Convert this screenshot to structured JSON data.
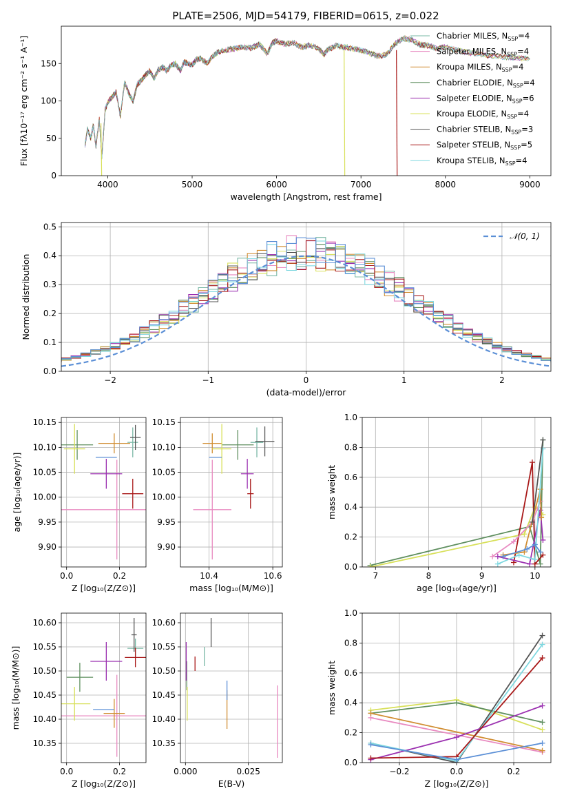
{
  "figure": {
    "title": "PLATE=2506, MJD=54179, FIBERID=0615, z=0.022"
  },
  "palette": {
    "Chabrier MILES": "#7ab8a6",
    "Salpeter MILES": "#e889c0",
    "Kroupa MILES": "#d18e33",
    "Chabrier ELODIE": "#5f8f5f",
    "Salpeter ELODIE": "#9b30b0",
    "Kroupa ELODIE": "#d8e05a",
    "Chabrier STELIB": "#555555",
    "Salpeter STELIB": "#a81818",
    "Kroupa STELIB": "#7fd8e0",
    "Normal": "#5b8fd6",
    "spectrum": "#888888"
  },
  "legend_spectra": [
    {
      "name": "Chabrier MILES",
      "label": "Chabrier MILES, N",
      "sub": "SSP",
      "suffix": "=4"
    },
    {
      "name": "Salpeter MILES",
      "label": "Salpeter MILES, N",
      "sub": "SSP",
      "suffix": "=4"
    },
    {
      "name": "Kroupa MILES",
      "label": "Kroupa MILES, N",
      "sub": "SSP",
      "suffix": "=4"
    },
    {
      "name": "Chabrier ELODIE",
      "label": "Chabrier ELODIE, N",
      "sub": "SSP",
      "suffix": "=4"
    },
    {
      "name": "Salpeter ELODIE",
      "label": "Salpeter ELODIE, N",
      "sub": "SSP",
      "suffix": "=6"
    },
    {
      "name": "Kroupa ELODIE",
      "label": "Kroupa ELODIE, N",
      "sub": "SSP",
      "suffix": "=4"
    },
    {
      "name": "Chabrier STELIB",
      "label": "Chabrier STELIB, N",
      "sub": "SSP",
      "suffix": "=3"
    },
    {
      "name": "Salpeter STELIB",
      "label": "Salpeter STELIB, N",
      "sub": "SSP",
      "suffix": "=5"
    },
    {
      "name": "Kroupa STELIB",
      "label": "Kroupa STELIB, N",
      "sub": "SSP",
      "suffix": "=4"
    }
  ],
  "chart_data": [
    {
      "id": "spectrum",
      "type": "line",
      "xlabel": "wavelength [Angstrom, rest frame]",
      "ylabel": "Flux [fλ10⁻¹⁷ erg cm⁻² s⁻¹ A⁻¹]",
      "xlim": [
        3450,
        9250
      ],
      "ylim": [
        0,
        200
      ],
      "xticks": [
        4000,
        5000,
        6000,
        7000,
        8000,
        9000
      ],
      "yticks": [
        0,
        50,
        100,
        150
      ],
      "x": [
        3730,
        3760,
        3800,
        3830,
        3860,
        3900,
        3930,
        3970,
        4000,
        4050,
        4100,
        4150,
        4200,
        4250,
        4300,
        4350,
        4400,
        4450,
        4500,
        4550,
        4600,
        4650,
        4700,
        4750,
        4800,
        4861,
        4900,
        4950,
        5000,
        5050,
        5100,
        5175,
        5250,
        5300,
        5400,
        5500,
        5600,
        5700,
        5800,
        5893,
        5950,
        6000,
        6100,
        6200,
        6300,
        6400,
        6500,
        6563,
        6600,
        6700,
        6800,
        6900,
        7000,
        7100,
        7200,
        7300,
        7400,
        7500,
        7600,
        7700,
        7800,
        7900,
        8000,
        8200,
        8400,
        8600,
        8800,
        9000
      ],
      "y": [
        40,
        62,
        50,
        68,
        40,
        75,
        25,
        88,
        98,
        105,
        112,
        80,
        125,
        110,
        100,
        122,
        128,
        135,
        140,
        130,
        142,
        145,
        140,
        148,
        150,
        140,
        152,
        150,
        148,
        155,
        157,
        150,
        160,
        165,
        168,
        170,
        172,
        171,
        176,
        163,
        178,
        180,
        176,
        178,
        172,
        175,
        170,
        162,
        168,
        174,
        172,
        170,
        168,
        164,
        160,
        162,
        176,
        184,
        182,
        175,
        174,
        170,
        172,
        166,
        162,
        160,
        158,
        156
      ],
      "drops": [
        {
          "series": "Kroupa ELODIE",
          "x": 6800
        },
        {
          "series": "Salpeter STELIB",
          "x": 7420
        },
        {
          "series": "Kroupa ELODIE",
          "x": 3920
        }
      ]
    },
    {
      "id": "residuals",
      "type": "histogram",
      "xlabel": "(data-model)/error",
      "ylabel": "Normed distribution",
      "xlim": [
        -2.5,
        2.5
      ],
      "ylim": [
        0,
        0.515
      ],
      "xticks": [
        -2,
        -1,
        0,
        1,
        2
      ],
      "yticks": [
        0.0,
        0.1,
        0.2,
        0.3,
        0.4,
        0.5
      ],
      "legend": "𝒩(0, 1)",
      "bin_width": 0.1
    },
    {
      "id": "age_vs_Z",
      "type": "scatter",
      "xlabel": "Z [log₁₀(Z/Z⊙)]",
      "ylabel": "age  [log₁₀(age/yr)]",
      "xlim": [
        -0.02,
        0.3
      ],
      "ylim": [
        9.86,
        10.16
      ],
      "xticks": [
        0.0,
        0.2
      ],
      "yticks": [
        9.9,
        9.95,
        10.0,
        10.05,
        10.1,
        10.15
      ],
      "points": [
        {
          "series": "Chabrier MILES",
          "x": 0.25,
          "y": 10.11,
          "xerr": 0.02,
          "yerr": 0.03
        },
        {
          "series": "Salpeter MILES",
          "x": 0.19,
          "y": 9.975,
          "xerr": 0.29,
          "yerr": 0.1
        },
        {
          "series": "Kroupa MILES",
          "x": 0.18,
          "y": 10.108,
          "xerr": 0.06,
          "yerr": 0.02
        },
        {
          "series": "Chabrier ELODIE",
          "x": 0.04,
          "y": 10.105,
          "xerr": 0.06,
          "yerr": 0.03
        },
        {
          "series": "Salpeter ELODIE",
          "x": 0.15,
          "y": 10.047,
          "xerr": 0.06,
          "yerr": 0.03
        },
        {
          "series": "Kroupa ELODIE",
          "x": 0.03,
          "y": 10.097,
          "xerr": 0.04,
          "yerr": 0.05
        },
        {
          "series": "Chabrier STELIB",
          "x": 0.26,
          "y": 10.12,
          "xerr": 0.02,
          "yerr": 0.025
        },
        {
          "series": "Salpeter STELIB",
          "x": 0.25,
          "y": 10.007,
          "xerr": 0.04,
          "yerr": 0.03
        },
        {
          "series": "Normal",
          "x": 0.15,
          "y": 10.08,
          "xerr": 0.04,
          "yerr": 0.0
        }
      ]
    },
    {
      "id": "age_vs_mass",
      "type": "scatter",
      "xlabel": "mass [log₁₀(M/M⊙)]",
      "ylabel": "",
      "xlim": [
        10.31,
        10.63
      ],
      "ylim": [
        9.86,
        10.16
      ],
      "xticks": [
        10.4,
        10.6
      ],
      "yticks": [
        9.9,
        9.95,
        10.0,
        10.05,
        10.1,
        10.15
      ],
      "points": [
        {
          "series": "Chabrier MILES",
          "x": 10.55,
          "y": 10.11,
          "xerr": 0.02,
          "yerr": 0.03
        },
        {
          "series": "Salpeter MILES",
          "x": 10.41,
          "y": 9.975,
          "xerr": 0.06,
          "yerr": 0.1
        },
        {
          "series": "Kroupa MILES",
          "x": 10.41,
          "y": 10.108,
          "xerr": 0.03,
          "yerr": 0.02
        },
        {
          "series": "Chabrier ELODIE",
          "x": 10.49,
          "y": 10.105,
          "xerr": 0.05,
          "yerr": 0.03
        },
        {
          "series": "Salpeter ELODIE",
          "x": 10.52,
          "y": 10.047,
          "xerr": 0.02,
          "yerr": 0.03
        },
        {
          "series": "Kroupa ELODIE",
          "x": 10.44,
          "y": 10.097,
          "xerr": 0.03,
          "yerr": 0.05
        },
        {
          "series": "Chabrier STELIB",
          "x": 10.575,
          "y": 10.112,
          "xerr": 0.03,
          "yerr": 0.03
        },
        {
          "series": "Salpeter STELIB",
          "x": 10.53,
          "y": 10.007,
          "xerr": 0.01,
          "yerr": 0.03
        },
        {
          "series": "Normal",
          "x": 10.42,
          "y": 10.08,
          "xerr": 0.02,
          "yerr": 0.0
        }
      ]
    },
    {
      "id": "weight_vs_age",
      "type": "line",
      "xlabel": "age  [log₁₀(age/yr)]",
      "ylabel": "mass weight",
      "xlim": [
        6.75,
        10.3
      ],
      "ylim": [
        0,
        1
      ],
      "xticks": [
        7,
        8,
        9,
        10
      ],
      "yticks": [
        0.0,
        0.2,
        0.4,
        0.6,
        0.8,
        1.0
      ],
      "series": [
        {
          "name": "Chabrier ELODIE",
          "x": [
            6.9,
            9.9,
            10.1,
            10.15
          ],
          "y": [
            0.01,
            0.27,
            0.02,
            0.85
          ]
        },
        {
          "name": "Kroupa ELODIE",
          "x": [
            6.9,
            9.8,
            10.0,
            10.15
          ],
          "y": [
            0.0,
            0.22,
            0.4,
            0.35
          ]
        },
        {
          "name": "Salpeter STELIB",
          "x": [
            9.6,
            9.95,
            10.0,
            10.15
          ],
          "y": [
            0.03,
            0.7,
            0.02,
            0.08
          ]
        },
        {
          "name": "Salpeter ELODIE",
          "x": [
            9.3,
            9.9,
            10.1,
            10.15
          ],
          "y": [
            0.07,
            0.02,
            0.38,
            0.18
          ]
        },
        {
          "name": "Salpeter MILES",
          "x": [
            9.2,
            9.6,
            9.95,
            10.1
          ],
          "y": [
            0.07,
            0.17,
            0.3,
            0.44
          ]
        },
        {
          "name": "Kroupa MILES",
          "x": [
            9.4,
            9.8,
            10.1,
            10.12
          ],
          "y": [
            0.08,
            0.1,
            0.52,
            0.33
          ]
        },
        {
          "name": "Kroupa STELIB",
          "x": [
            9.3,
            9.7,
            10.0,
            10.15
          ],
          "y": [
            0.02,
            0.08,
            0.05,
            0.79
          ]
        },
        {
          "name": "Normal",
          "x": [
            9.4,
            9.85,
            10.0,
            10.1
          ],
          "y": [
            0.07,
            0.12,
            0.15,
            0.1
          ]
        },
        {
          "name": "Chabrier STELIB",
          "x": [
            9.95,
            10.15
          ],
          "y": [
            0.3,
            0.85
          ]
        }
      ]
    },
    {
      "id": "mass_vs_Z",
      "type": "scatter",
      "xlabel": "Z [log₁₀(Z/Z⊙)]",
      "ylabel": "mass [log₁₀(M/M⊙)]",
      "xlim": [
        -0.02,
        0.3
      ],
      "ylim": [
        10.31,
        10.62
      ],
      "xticks": [
        0.0,
        0.2
      ],
      "yticks": [
        10.35,
        10.4,
        10.45,
        10.5,
        10.55,
        10.6
      ],
      "points": [
        {
          "series": "Chabrier MILES",
          "x": 0.26,
          "y": 10.547,
          "xerr": 0.03,
          "yerr": 0.02
        },
        {
          "series": "Salpeter MILES",
          "x": 0.19,
          "y": 10.407,
          "xerr": 0.29,
          "yerr": 0.085
        },
        {
          "series": "Kroupa MILES",
          "x": 0.18,
          "y": 10.412,
          "xerr": 0.04,
          "yerr": 0.03
        },
        {
          "series": "Chabrier ELODIE",
          "x": 0.05,
          "y": 10.487,
          "xerr": 0.05,
          "yerr": 0.03
        },
        {
          "series": "Salpeter ELODIE",
          "x": 0.15,
          "y": 10.52,
          "xerr": 0.06,
          "yerr": 0.04
        },
        {
          "series": "Kroupa ELODIE",
          "x": 0.03,
          "y": 10.432,
          "xerr": 0.06,
          "yerr": 0.035
        },
        {
          "series": "Chabrier STELIB",
          "x": 0.255,
          "y": 10.575,
          "xerr": 0.01,
          "yerr": 0.035
        },
        {
          "series": "Salpeter STELIB",
          "x": 0.26,
          "y": 10.528,
          "xerr": 0.04,
          "yerr": 0.02
        },
        {
          "series": "Normal",
          "x": 0.14,
          "y": 10.42,
          "xerr": 0.04,
          "yerr": 0.0
        }
      ]
    },
    {
      "id": "mass_vs_ebv",
      "type": "scatter",
      "xlabel": "E(B-V)",
      "ylabel": "",
      "xlim": [
        -0.002,
        0.0385
      ],
      "ylim": [
        10.31,
        10.62
      ],
      "xticks": [
        0.0,
        0.025
      ],
      "xtick_labels": [
        "0.000",
        "0.025"
      ],
      "yticks": [
        10.35,
        10.4,
        10.45,
        10.5,
        10.55,
        10.6
      ],
      "points": [
        {
          "series": "Chabrier MILES",
          "x": 0.0075,
          "y": 10.53,
          "xerr": 0.0,
          "yerr": 0.02
        },
        {
          "series": "Salpeter MILES",
          "x": 0.0365,
          "y": 10.395,
          "xerr": 0.0,
          "yerr": 0.075
        },
        {
          "series": "Kroupa MILES",
          "x": 0.0165,
          "y": 10.42,
          "xerr": 0.0,
          "yerr": 0.04
        },
        {
          "series": "Chabrier ELODIE",
          "x": 0.0005,
          "y": 10.49,
          "xerr": 0.0,
          "yerr": 0.03
        },
        {
          "series": "Salpeter ELODIE",
          "x": 0.0003,
          "y": 10.52,
          "xerr": 0.0,
          "yerr": 0.04
        },
        {
          "series": "Kroupa ELODIE",
          "x": 0.0007,
          "y": 10.432,
          "xerr": 0.0,
          "yerr": 0.035
        },
        {
          "series": "Chabrier STELIB",
          "x": 0.0102,
          "y": 10.58,
          "xerr": 0.0,
          "yerr": 0.03
        },
        {
          "series": "Salpeter STELIB",
          "x": 0.0038,
          "y": 10.515,
          "xerr": 0.0,
          "yerr": 0.015
        },
        {
          "series": "Normal",
          "x": 0.0165,
          "y": 10.46,
          "xerr": 0.0,
          "yerr": 0.02
        }
      ]
    },
    {
      "id": "weight_vs_Z",
      "type": "line",
      "xlabel": "Z [log₁₀(Z/Z⊙)]",
      "ylabel": "mass weight",
      "xlim": [
        -0.33,
        0.33
      ],
      "ylim": [
        0,
        1
      ],
      "xticks": [
        -0.2,
        0.0,
        0.2
      ],
      "yticks": [
        0.0,
        0.2,
        0.4,
        0.6,
        0.8,
        1.0
      ],
      "series": [
        {
          "name": "Kroupa ELODIE",
          "x": [
            -0.3,
            0.0,
            0.3
          ],
          "y": [
            0.35,
            0.42,
            0.22
          ]
        },
        {
          "name": "Chabrier ELODIE",
          "x": [
            -0.3,
            0.0,
            0.3
          ],
          "y": [
            0.33,
            0.4,
            0.27
          ]
        },
        {
          "name": "Salpeter MILES",
          "x": [
            -0.3,
            0.3
          ],
          "y": [
            0.3,
            0.07
          ]
        },
        {
          "name": "Kroupa MILES",
          "x": [
            -0.3,
            0.3
          ],
          "y": [
            0.33,
            0.08
          ]
        },
        {
          "name": "Chabrier STELIB",
          "x": [
            -0.3,
            0.0,
            0.3
          ],
          "y": [
            0.13,
            0.0,
            0.85
          ]
        },
        {
          "name": "Kroupa STELIB",
          "x": [
            -0.3,
            0.0,
            0.3
          ],
          "y": [
            0.13,
            0.01,
            0.79
          ]
        },
        {
          "name": "Salpeter ELODIE",
          "x": [
            -0.3,
            0.0,
            0.3
          ],
          "y": [
            0.02,
            0.17,
            0.38
          ]
        },
        {
          "name": "Salpeter STELIB",
          "x": [
            -0.3,
            0.0,
            0.3
          ],
          "y": [
            0.03,
            0.04,
            0.7
          ]
        },
        {
          "name": "Normal",
          "x": [
            -0.3,
            0.0,
            0.3
          ],
          "y": [
            0.12,
            0.02,
            0.13
          ]
        }
      ]
    }
  ]
}
